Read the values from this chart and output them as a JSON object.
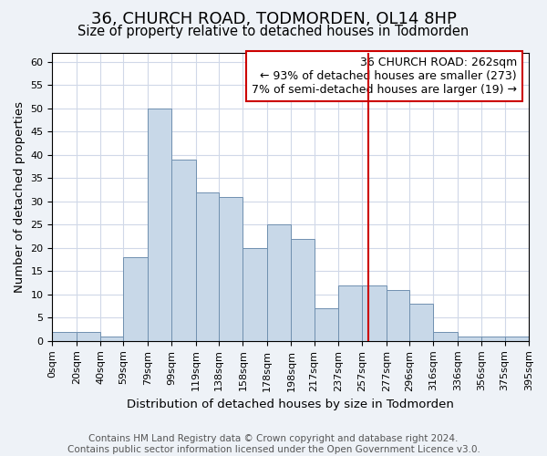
{
  "title": "36, CHURCH ROAD, TODMORDEN, OL14 8HP",
  "subtitle": "Size of property relative to detached houses in Todmorden",
  "xlabel": "Distribution of detached houses by size in Todmorden",
  "ylabel": "Number of detached properties",
  "bar_edges": [
    0,
    20,
    40,
    59,
    79,
    99,
    119,
    138,
    158,
    178,
    198,
    217,
    237,
    257,
    277,
    296,
    316,
    336,
    356,
    375,
    395
  ],
  "bar_heights": [
    2,
    2,
    1,
    18,
    50,
    39,
    32,
    31,
    20,
    25,
    22,
    7,
    12,
    12,
    11,
    8,
    2,
    1,
    1,
    1
  ],
  "bar_color": "#c8d8e8",
  "bar_edge_color": "#7090b0",
  "grid_color": "#d0d8e8",
  "vline_x": 262,
  "vline_color": "#cc0000",
  "annotation_box_text": "36 CHURCH ROAD: 262sqm\n← 93% of detached houses are smaller (273)\n7% of semi-detached houses are larger (19) →",
  "ylim": [
    0,
    62
  ],
  "yticks": [
    0,
    5,
    10,
    15,
    20,
    25,
    30,
    35,
    40,
    45,
    50,
    55,
    60
  ],
  "tick_labels": [
    "0sqm",
    "20sqm",
    "40sqm",
    "59sqm",
    "79sqm",
    "99sqm",
    "119sqm",
    "138sqm",
    "158sqm",
    "178sqm",
    "198sqm",
    "217sqm",
    "237sqm",
    "257sqm",
    "277sqm",
    "296sqm",
    "316sqm",
    "336sqm",
    "356sqm",
    "375sqm",
    "395sqm"
  ],
  "footer_text": "Contains HM Land Registry data © Crown copyright and database right 2024.\nContains public sector information licensed under the Open Government Licence v3.0.",
  "background_color": "#eef2f7",
  "plot_background_color": "#ffffff",
  "title_fontsize": 13,
  "subtitle_fontsize": 10.5,
  "axis_label_fontsize": 9.5,
  "tick_fontsize": 8,
  "annotation_fontsize": 9,
  "footer_fontsize": 7.5
}
